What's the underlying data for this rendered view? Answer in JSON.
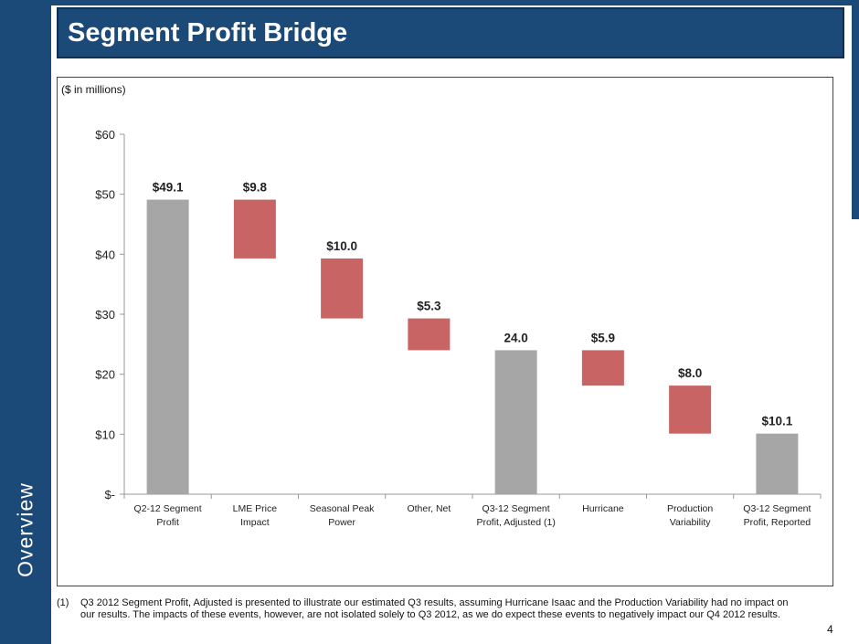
{
  "page": {
    "title": "Segment Profit Bridge",
    "section_label": "Overview",
    "page_number": "4",
    "footnote_number": "(1)",
    "footnote_text": "Q3 2012 Segment Profit, Adjusted is presented to illustrate our estimated Q3 results, assuming Hurricane Isaac and the Production Variability had no impact on our results. The impacts of these events, however, are not isolated solely to Q3 2012, as we do expect these events to negatively impact  our Q4 2012 results."
  },
  "colors": {
    "brand": "#1b4a78",
    "total_bar": "#a6a6a6",
    "decrease_bar": "#c86464"
  },
  "chart_data": {
    "type": "bar",
    "subtype": "waterfall",
    "units_label": "($ in millions)",
    "ylim": [
      0,
      60
    ],
    "yticks": [
      0,
      10,
      20,
      30,
      40,
      50,
      60
    ],
    "ytick_labels": [
      "$-",
      "$10",
      "$20",
      "$30",
      "$40",
      "$50",
      "$60"
    ],
    "grid": false,
    "categories": [
      [
        "Q2-12 Segment",
        "Profit"
      ],
      [
        "LME Price",
        "Impact"
      ],
      [
        "Seasonal Peak",
        "Power"
      ],
      [
        "Other, Net"
      ],
      [
        "Q3-12 Segment",
        "Profit, Adjusted (1)"
      ],
      [
        "Hurricane"
      ],
      [
        "Production",
        "Variability"
      ],
      [
        "Q3-12 Segment",
        "Profit, Reported"
      ]
    ],
    "bars": [
      {
        "kind": "total",
        "start": 0,
        "end": 49.1,
        "label": "$49.1"
      },
      {
        "kind": "decrease",
        "start": 49.1,
        "end": 39.3,
        "label": "$9.8"
      },
      {
        "kind": "decrease",
        "start": 39.3,
        "end": 29.3,
        "label": "$10.0"
      },
      {
        "kind": "decrease",
        "start": 29.3,
        "end": 24.0,
        "label": "$5.3"
      },
      {
        "kind": "total",
        "start": 0,
        "end": 24.0,
        "label": "24.0"
      },
      {
        "kind": "decrease",
        "start": 24.0,
        "end": 18.1,
        "label": "$5.9"
      },
      {
        "kind": "decrease",
        "start": 18.1,
        "end": 10.1,
        "label": "$8.0"
      },
      {
        "kind": "total",
        "start": 0,
        "end": 10.1,
        "label": "$10.1"
      }
    ]
  }
}
